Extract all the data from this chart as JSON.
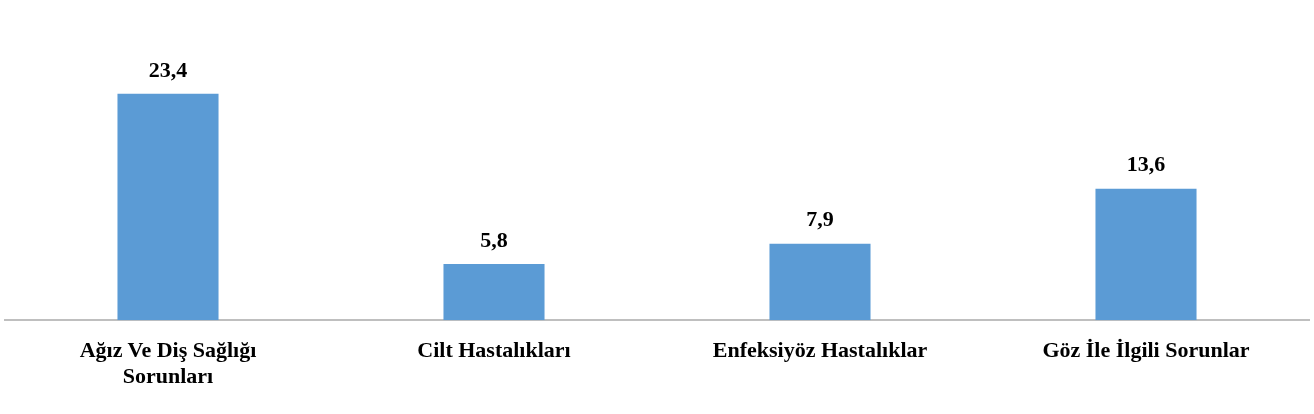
{
  "chart_data": {
    "type": "bar",
    "categories": [
      "Ağız Ve Diş Sağlığı Sorunları",
      "Cilt Hastalıkları",
      "Enfeksiyöz Hastalıklar",
      "Göz İle İlgili Sorunlar"
    ],
    "values": [
      23.4,
      5.8,
      7.9,
      13.6
    ],
    "value_labels": [
      "23,4",
      "5,8",
      "7,9",
      "13,6"
    ],
    "color": "#5b9bd5"
  }
}
